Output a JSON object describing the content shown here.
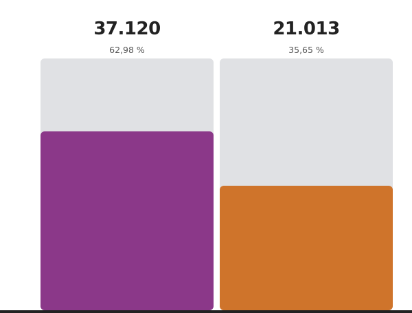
{
  "chart_data": {
    "type": "bar",
    "series": [
      {
        "value_label": "37.120",
        "percent_label": "62,98 %",
        "value": 37120,
        "percent": 62.98,
        "color": "#8b3889",
        "track_color": "#e0e1e4"
      },
      {
        "value_label": "21.013",
        "percent_label": "35,65 %",
        "value": 21013,
        "percent": 35.65,
        "color": "#cf742b",
        "track_color": "#e0e1e4"
      }
    ],
    "ylim": [
      0,
      100
    ]
  }
}
